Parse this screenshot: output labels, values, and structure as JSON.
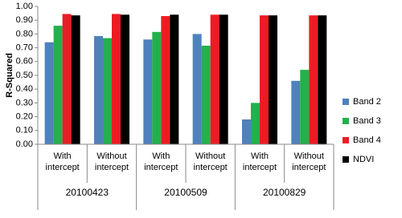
{
  "chart_data": {
    "type": "bar",
    "y_label": "R-Squared",
    "categories": [
      "With intercept",
      "Without intercept",
      "With intercept",
      "Without intercept",
      "With intercept",
      "Without intercept"
    ],
    "groups": [
      "20100423",
      "20100509",
      "20100829"
    ],
    "series": [
      {
        "name": "Band 2",
        "color": "#4f81bd",
        "values": [
          0.74,
          0.785,
          0.76,
          0.8,
          0.18,
          0.46
        ]
      },
      {
        "name": "Band 3",
        "color": "#22b14c",
        "values": [
          0.86,
          0.77,
          0.815,
          0.715,
          0.3,
          0.54
        ]
      },
      {
        "name": "Band 4",
        "color": "#ed1c24",
        "values": [
          0.945,
          0.945,
          0.93,
          0.94,
          0.935,
          0.935
        ]
      },
      {
        "name": "NDVI",
        "color": "#000000",
        "values": [
          0.935,
          0.94,
          0.94,
          0.94,
          0.935,
          0.935
        ]
      }
    ],
    "ylim": [
      0,
      1
    ],
    "yticks": [
      {
        "value": 0,
        "label": "0.00"
      },
      {
        "value": 0.1,
        "label": "0.10"
      },
      {
        "value": 0.2,
        "label": "0.20"
      },
      {
        "value": 0.3,
        "label": "0.30"
      },
      {
        "value": 0.4,
        "label": "0.40"
      },
      {
        "value": 0.5,
        "label": "0.50"
      },
      {
        "value": 0.6,
        "label": "0.60"
      },
      {
        "value": 0.7,
        "label": "0.70"
      },
      {
        "value": 0.8,
        "label": "0.80"
      },
      {
        "value": 0.9,
        "label": "0.90"
      },
      {
        "value": 1,
        "label": "1.00"
      }
    ],
    "legend": "right"
  }
}
